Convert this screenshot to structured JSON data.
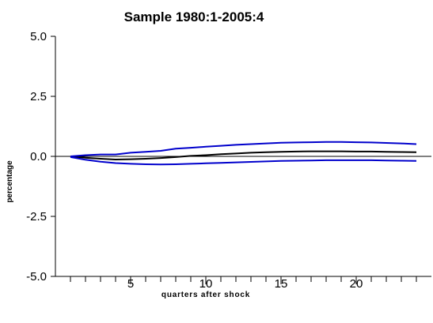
{
  "chart_data": {
    "type": "line",
    "title": "Sample 1980:1-2005:4",
    "xlabel": "quarters after shock",
    "ylabel": "percentage",
    "xlim": [
      0,
      25
    ],
    "ylim": [
      -5.0,
      5.0
    ],
    "xticks": [
      5,
      10,
      15,
      20
    ],
    "xtick_labels": [
      "5",
      "10",
      "15",
      "20"
    ],
    "yticks": [
      5.0,
      2.5,
      0.0,
      -2.5,
      -5.0
    ],
    "ytick_labels": [
      "5.0",
      "2.5",
      "0.0",
      "-2.5",
      "-5.0"
    ],
    "grid": false,
    "zero_line": true,
    "x": [
      1,
      2,
      3,
      4,
      5,
      6,
      7,
      8,
      9,
      10,
      11,
      12,
      13,
      14,
      15,
      16,
      17,
      18,
      19,
      20,
      21,
      22,
      23,
      24
    ],
    "series": [
      {
        "color": "#000000",
        "values": [
          0.0,
          -0.06,
          -0.1,
          -0.13,
          -0.12,
          -0.1,
          -0.07,
          -0.03,
          0.02,
          0.05,
          0.09,
          0.12,
          0.15,
          0.17,
          0.19,
          0.2,
          0.21,
          0.21,
          0.21,
          0.2,
          0.2,
          0.19,
          0.18,
          0.17
        ]
      },
      {
        "color": "#0000cc",
        "values": [
          0.0,
          0.05,
          0.08,
          0.08,
          0.15,
          0.19,
          0.23,
          0.32,
          0.36,
          0.4,
          0.44,
          0.48,
          0.51,
          0.54,
          0.57,
          0.58,
          0.59,
          0.6,
          0.6,
          0.59,
          0.58,
          0.56,
          0.54,
          0.51
        ]
      },
      {
        "color": "#0000cc",
        "values": [
          -0.03,
          -0.14,
          -0.22,
          -0.28,
          -0.31,
          -0.33,
          -0.34,
          -0.33,
          -0.31,
          -0.29,
          -0.27,
          -0.25,
          -0.23,
          -0.21,
          -0.19,
          -0.18,
          -0.17,
          -0.16,
          -0.16,
          -0.16,
          -0.16,
          -0.17,
          -0.18,
          -0.19
        ]
      }
    ]
  }
}
